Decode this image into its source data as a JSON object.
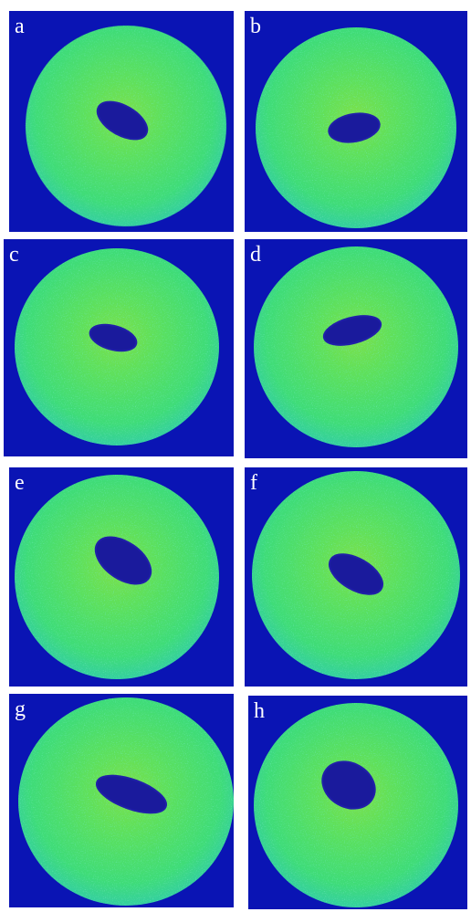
{
  "panels": [
    {
      "label": "a"
    },
    {
      "label": "b"
    },
    {
      "label": "c"
    },
    {
      "label": "d"
    },
    {
      "label": "e"
    },
    {
      "label": "f"
    },
    {
      "label": "g"
    },
    {
      "label": "h"
    }
  ]
}
